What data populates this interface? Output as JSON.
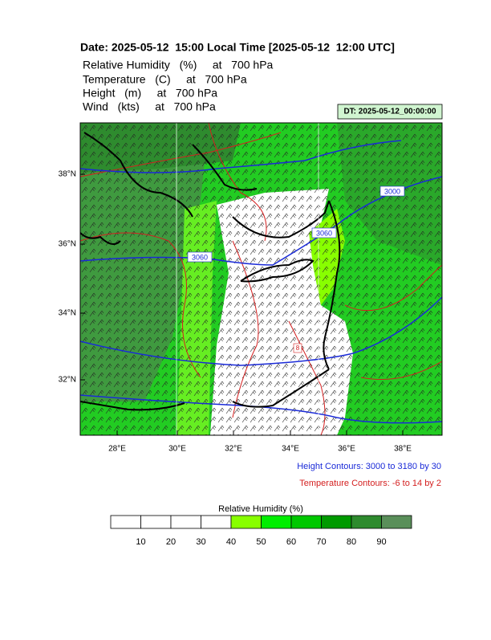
{
  "header": {
    "title": "Date: 2025-05-12  15:00 Local Time [2025-05-12  12:00 UTC]",
    "fields": [
      "Relative Humidity   (%)     at   700 hPa",
      "Temperature   (C)     at   700 hPa",
      "Height   (m)     at   700 hPa",
      "Wind   (kts)     at   700 hPa"
    ],
    "dt_label": "DT: 2025-05-12_00:00:00"
  },
  "map": {
    "lat_labels": [
      "38°N",
      "36°N",
      "34°N",
      "32°N"
    ],
    "lon_labels": [
      "28°E",
      "30°E",
      "32°E",
      "34°E",
      "36°E",
      "38°E"
    ],
    "contour_labels": [
      "3000",
      "3060",
      "3060",
      "8"
    ]
  },
  "legend": {
    "height_contours": "Height Contours: 3000 to 3180 by 30",
    "temperature_contours": "Temperature Contours: -6 to 14 by 2",
    "colorbar": {
      "title": "Relative Humidity  (%)",
      "labels": [
        "10",
        "20",
        "30",
        "40",
        "50",
        "60",
        "70",
        "80",
        "90"
      ],
      "colors": [
        "#ffffff",
        "#ffffff",
        "#ffffff",
        "#ffffff",
        "#88ff00",
        "#00ee00",
        "#00c800",
        "#009a00",
        "#2e8b2e",
        "#5a8f5a"
      ]
    }
  }
}
